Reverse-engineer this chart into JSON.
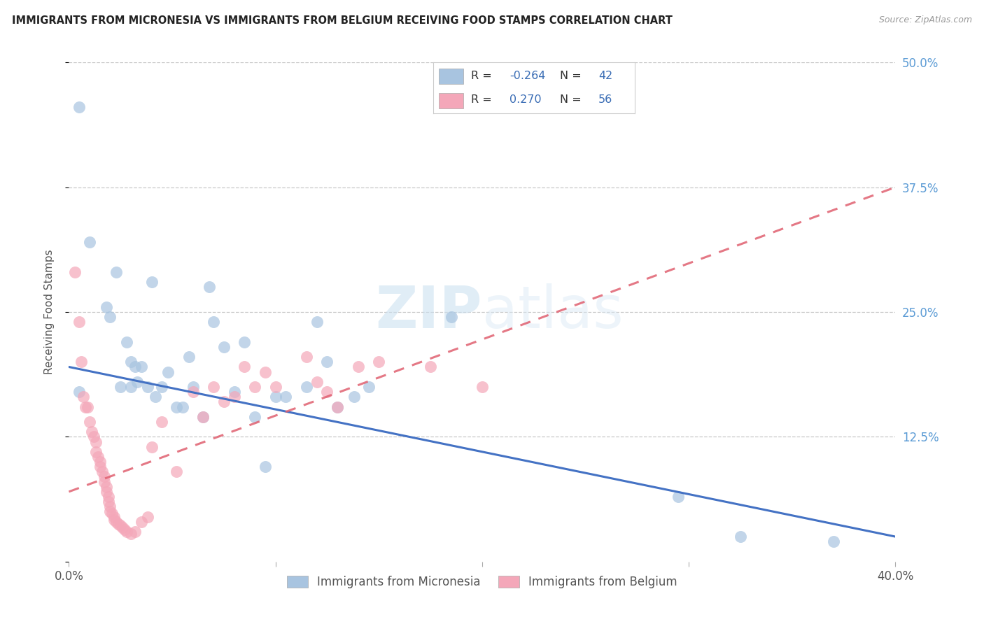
{
  "title": "IMMIGRANTS FROM MICRONESIA VS IMMIGRANTS FROM BELGIUM RECEIVING FOOD STAMPS CORRELATION CHART",
  "source": "Source: ZipAtlas.com",
  "ylabel": "Receiving Food Stamps",
  "watermark": "ZIPatlas",
  "xlim": [
    0.0,
    0.4
  ],
  "ylim": [
    0.0,
    0.5
  ],
  "micronesia_color": "#a8c4e0",
  "belgium_color": "#f4a7b9",
  "micronesia_R": -0.264,
  "micronesia_N": 42,
  "belgium_R": 0.27,
  "belgium_N": 56,
  "micronesia_line_color": "#4472c4",
  "belgium_line_color": "#e06070",
  "legend_blue_R": "-0.264",
  "legend_blue_N": "42",
  "legend_pink_R": "0.270",
  "legend_pink_N": "56",
  "micronesia_scatter": [
    [
      0.005,
      0.455
    ],
    [
      0.005,
      0.17
    ],
    [
      0.01,
      0.32
    ],
    [
      0.018,
      0.255
    ],
    [
      0.02,
      0.245
    ],
    [
      0.023,
      0.29
    ],
    [
      0.025,
      0.175
    ],
    [
      0.028,
      0.22
    ],
    [
      0.03,
      0.2
    ],
    [
      0.03,
      0.175
    ],
    [
      0.032,
      0.195
    ],
    [
      0.033,
      0.18
    ],
    [
      0.035,
      0.195
    ],
    [
      0.038,
      0.175
    ],
    [
      0.04,
      0.28
    ],
    [
      0.042,
      0.165
    ],
    [
      0.045,
      0.175
    ],
    [
      0.048,
      0.19
    ],
    [
      0.052,
      0.155
    ],
    [
      0.055,
      0.155
    ],
    [
      0.058,
      0.205
    ],
    [
      0.06,
      0.175
    ],
    [
      0.065,
      0.145
    ],
    [
      0.068,
      0.275
    ],
    [
      0.07,
      0.24
    ],
    [
      0.075,
      0.215
    ],
    [
      0.08,
      0.17
    ],
    [
      0.085,
      0.22
    ],
    [
      0.09,
      0.145
    ],
    [
      0.095,
      0.095
    ],
    [
      0.1,
      0.165
    ],
    [
      0.105,
      0.165
    ],
    [
      0.115,
      0.175
    ],
    [
      0.12,
      0.24
    ],
    [
      0.125,
      0.2
    ],
    [
      0.13,
      0.155
    ],
    [
      0.138,
      0.165
    ],
    [
      0.145,
      0.175
    ],
    [
      0.185,
      0.245
    ],
    [
      0.295,
      0.065
    ],
    [
      0.325,
      0.025
    ],
    [
      0.37,
      0.02
    ]
  ],
  "belgium_scatter": [
    [
      0.003,
      0.29
    ],
    [
      0.005,
      0.24
    ],
    [
      0.006,
      0.2
    ],
    [
      0.007,
      0.165
    ],
    [
      0.008,
      0.155
    ],
    [
      0.009,
      0.155
    ],
    [
      0.01,
      0.14
    ],
    [
      0.011,
      0.13
    ],
    [
      0.012,
      0.125
    ],
    [
      0.013,
      0.12
    ],
    [
      0.013,
      0.11
    ],
    [
      0.014,
      0.105
    ],
    [
      0.015,
      0.1
    ],
    [
      0.015,
      0.095
    ],
    [
      0.016,
      0.09
    ],
    [
      0.017,
      0.085
    ],
    [
      0.017,
      0.08
    ],
    [
      0.018,
      0.075
    ],
    [
      0.018,
      0.07
    ],
    [
      0.019,
      0.065
    ],
    [
      0.019,
      0.06
    ],
    [
      0.02,
      0.055
    ],
    [
      0.02,
      0.05
    ],
    [
      0.021,
      0.048
    ],
    [
      0.022,
      0.045
    ],
    [
      0.022,
      0.042
    ],
    [
      0.023,
      0.04
    ],
    [
      0.024,
      0.038
    ],
    [
      0.025,
      0.036
    ],
    [
      0.026,
      0.034
    ],
    [
      0.027,
      0.032
    ],
    [
      0.028,
      0.03
    ],
    [
      0.03,
      0.028
    ],
    [
      0.032,
      0.03
    ],
    [
      0.035,
      0.04
    ],
    [
      0.038,
      0.045
    ],
    [
      0.04,
      0.115
    ],
    [
      0.045,
      0.14
    ],
    [
      0.052,
      0.09
    ],
    [
      0.06,
      0.17
    ],
    [
      0.065,
      0.145
    ],
    [
      0.07,
      0.175
    ],
    [
      0.075,
      0.16
    ],
    [
      0.08,
      0.165
    ],
    [
      0.085,
      0.195
    ],
    [
      0.09,
      0.175
    ],
    [
      0.095,
      0.19
    ],
    [
      0.1,
      0.175
    ],
    [
      0.115,
      0.205
    ],
    [
      0.12,
      0.18
    ],
    [
      0.125,
      0.17
    ],
    [
      0.13,
      0.155
    ],
    [
      0.14,
      0.195
    ],
    [
      0.15,
      0.2
    ],
    [
      0.175,
      0.195
    ],
    [
      0.2,
      0.175
    ]
  ]
}
